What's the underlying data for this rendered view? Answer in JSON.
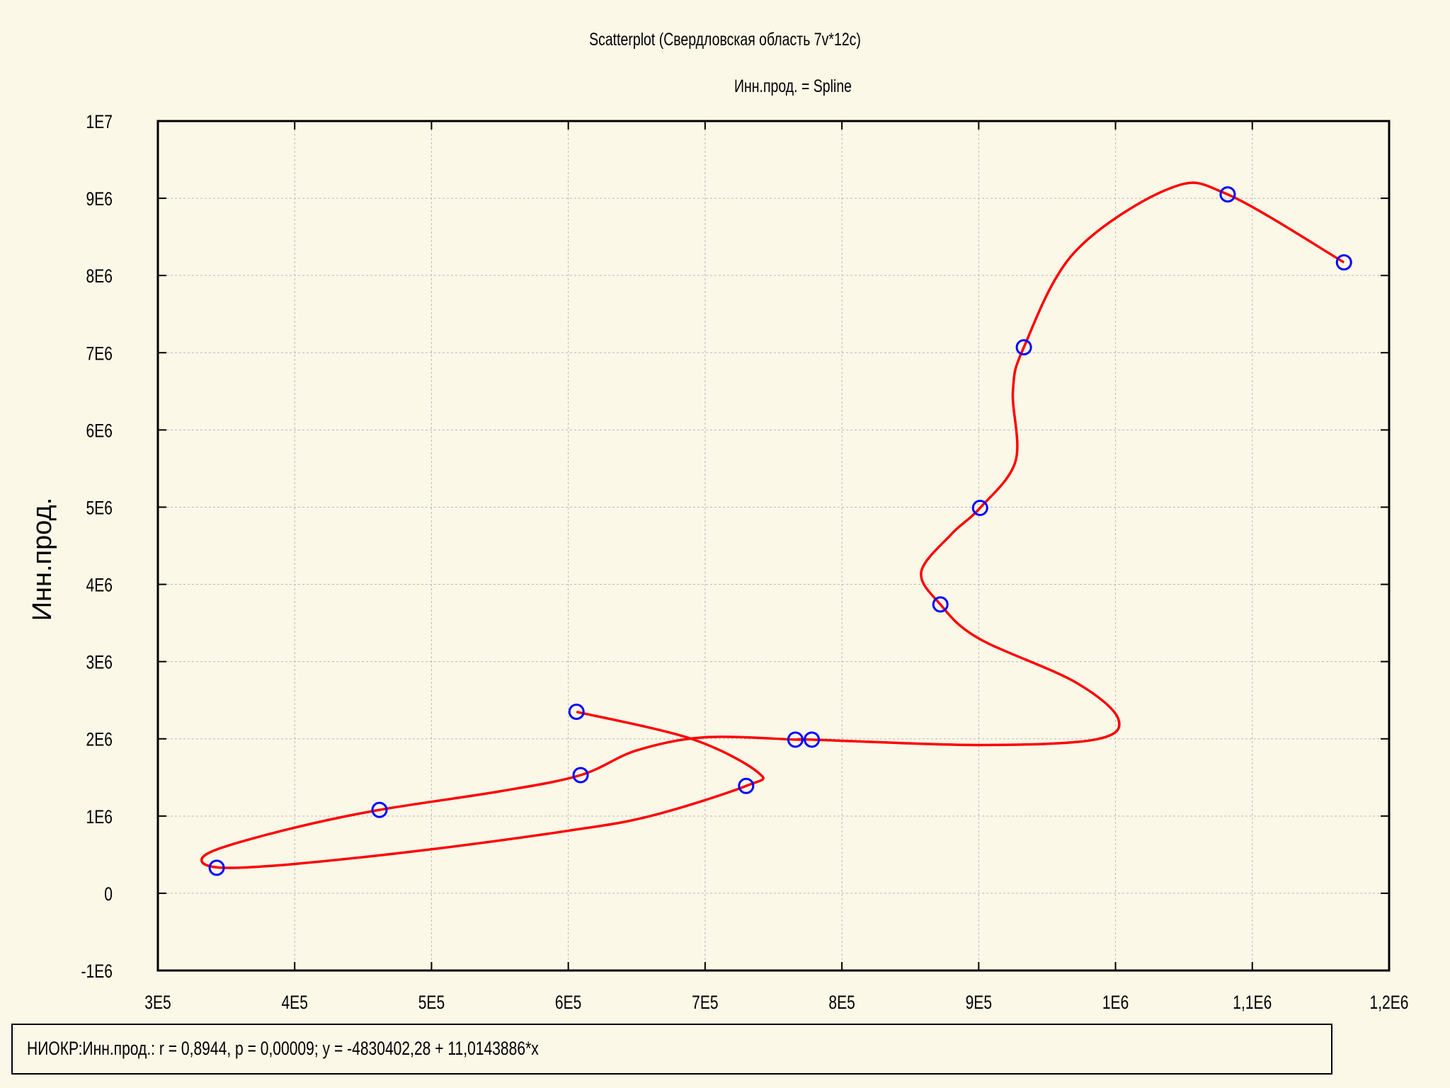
{
  "chart_data": {
    "type": "scatter",
    "title": "Scatterplot (Свердловская область 7v*12c)",
    "subtitle": "Инн.прод. = Spline",
    "xlabel": "",
    "ylabel": "Инн.прод.",
    "xlim": [
      300000,
      1200000
    ],
    "ylim": [
      -1000000,
      10000000
    ],
    "x_ticks": [
      300000,
      400000,
      500000,
      600000,
      700000,
      800000,
      900000,
      1000000,
      1100000,
      1200000
    ],
    "x_tick_labels": [
      "3E5",
      "4E5",
      "5E5",
      "6E5",
      "7E5",
      "8E5",
      "9E5",
      "1E6",
      "1,1E6",
      "1,2E6"
    ],
    "y_ticks": [
      -1000000,
      0,
      1000000,
      2000000,
      3000000,
      4000000,
      5000000,
      6000000,
      7000000,
      8000000,
      9000000,
      10000000
    ],
    "y_tick_labels": [
      "-1E6",
      "0",
      "1E6",
      "2E6",
      "3E6",
      "4E6",
      "5E6",
      "6E6",
      "7E6",
      "8E6",
      "9E6",
      "1E7"
    ],
    "grid": true,
    "points": [
      {
        "x": 606000,
        "y": 2350000
      },
      {
        "x": 609000,
        "y": 1530000
      },
      {
        "x": 462000,
        "y": 1080000
      },
      {
        "x": 343000,
        "y": 330000
      },
      {
        "x": 730000,
        "y": 1390000
      },
      {
        "x": 766000,
        "y": 1990000
      },
      {
        "x": 778000,
        "y": 1990000
      },
      {
        "x": 872000,
        "y": 3740000
      },
      {
        "x": 901000,
        "y": 4990000
      },
      {
        "x": 933000,
        "y": 7070000
      },
      {
        "x": 1082000,
        "y": 9050000
      },
      {
        "x": 1167000,
        "y": 8170000
      }
    ],
    "spline": [
      {
        "x": 606000,
        "y": 2350000
      },
      {
        "x": 690000,
        "y": 2000000
      },
      {
        "x": 739000,
        "y": 1560000
      },
      {
        "x": 730000,
        "y": 1390000
      },
      {
        "x": 660000,
        "y": 1000000
      },
      {
        "x": 600000,
        "y": 810000
      },
      {
        "x": 500000,
        "y": 570000
      },
      {
        "x": 400000,
        "y": 380000
      },
      {
        "x": 348000,
        "y": 330000
      },
      {
        "x": 332000,
        "y": 420000
      },
      {
        "x": 345000,
        "y": 580000
      },
      {
        "x": 400000,
        "y": 850000
      },
      {
        "x": 462000,
        "y": 1080000
      },
      {
        "x": 550000,
        "y": 1320000
      },
      {
        "x": 609000,
        "y": 1530000
      },
      {
        "x": 650000,
        "y": 1850000
      },
      {
        "x": 700000,
        "y": 2020000
      },
      {
        "x": 766000,
        "y": 1990000
      },
      {
        "x": 778000,
        "y": 1990000
      },
      {
        "x": 900000,
        "y": 1920000
      },
      {
        "x": 985000,
        "y": 1990000
      },
      {
        "x": 1002000,
        "y": 2260000
      },
      {
        "x": 970000,
        "y": 2740000
      },
      {
        "x": 900000,
        "y": 3300000
      },
      {
        "x": 872000,
        "y": 3740000
      },
      {
        "x": 858000,
        "y": 4160000
      },
      {
        "x": 880000,
        "y": 4650000
      },
      {
        "x": 901000,
        "y": 4990000
      },
      {
        "x": 927000,
        "y": 5600000
      },
      {
        "x": 925000,
        "y": 6500000
      },
      {
        "x": 933000,
        "y": 7070000
      },
      {
        "x": 970000,
        "y": 8300000
      },
      {
        "x": 1040000,
        "y": 9130000
      },
      {
        "x": 1082000,
        "y": 9050000
      },
      {
        "x": 1167000,
        "y": 8170000
      }
    ],
    "point_color": "#0000ff",
    "spline_color": "#ff0000"
  },
  "footer": {
    "regression_text": "НИОКР:Инн.прод.:   r = 0,8944,  p = 0,00009;  y = -4830402,28 + 11,0143886*x"
  }
}
